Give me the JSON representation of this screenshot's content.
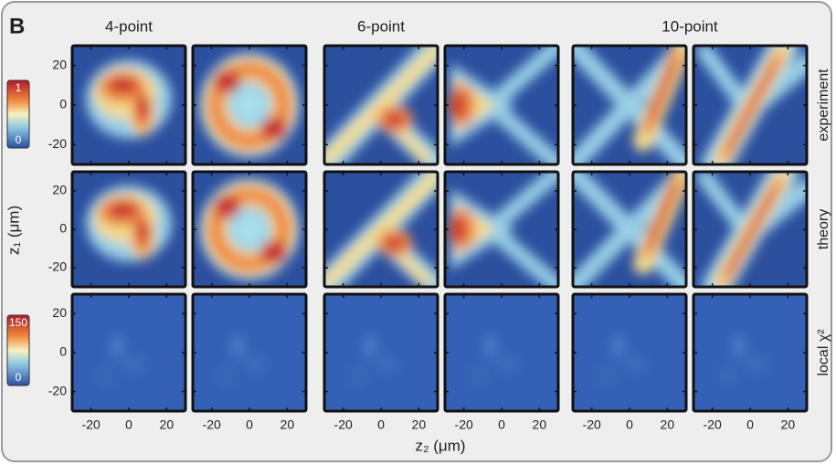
{
  "panel_label": "B",
  "column_titles": [
    "4-point",
    "6-point",
    "10-point"
  ],
  "row_labels": [
    "experiment",
    "theory",
    "local χ²"
  ],
  "y_axis_label": "z₁ (μm)",
  "x_axis_label": "z₂ (μm)",
  "zlim": [
    -30,
    30
  ],
  "yticks": [
    20,
    0,
    -20
  ],
  "xticks": [
    -20,
    0,
    20
  ],
  "colorbars": [
    {
      "max": 1,
      "min": 0
    },
    {
      "max": 150,
      "min": 0
    }
  ]
}
